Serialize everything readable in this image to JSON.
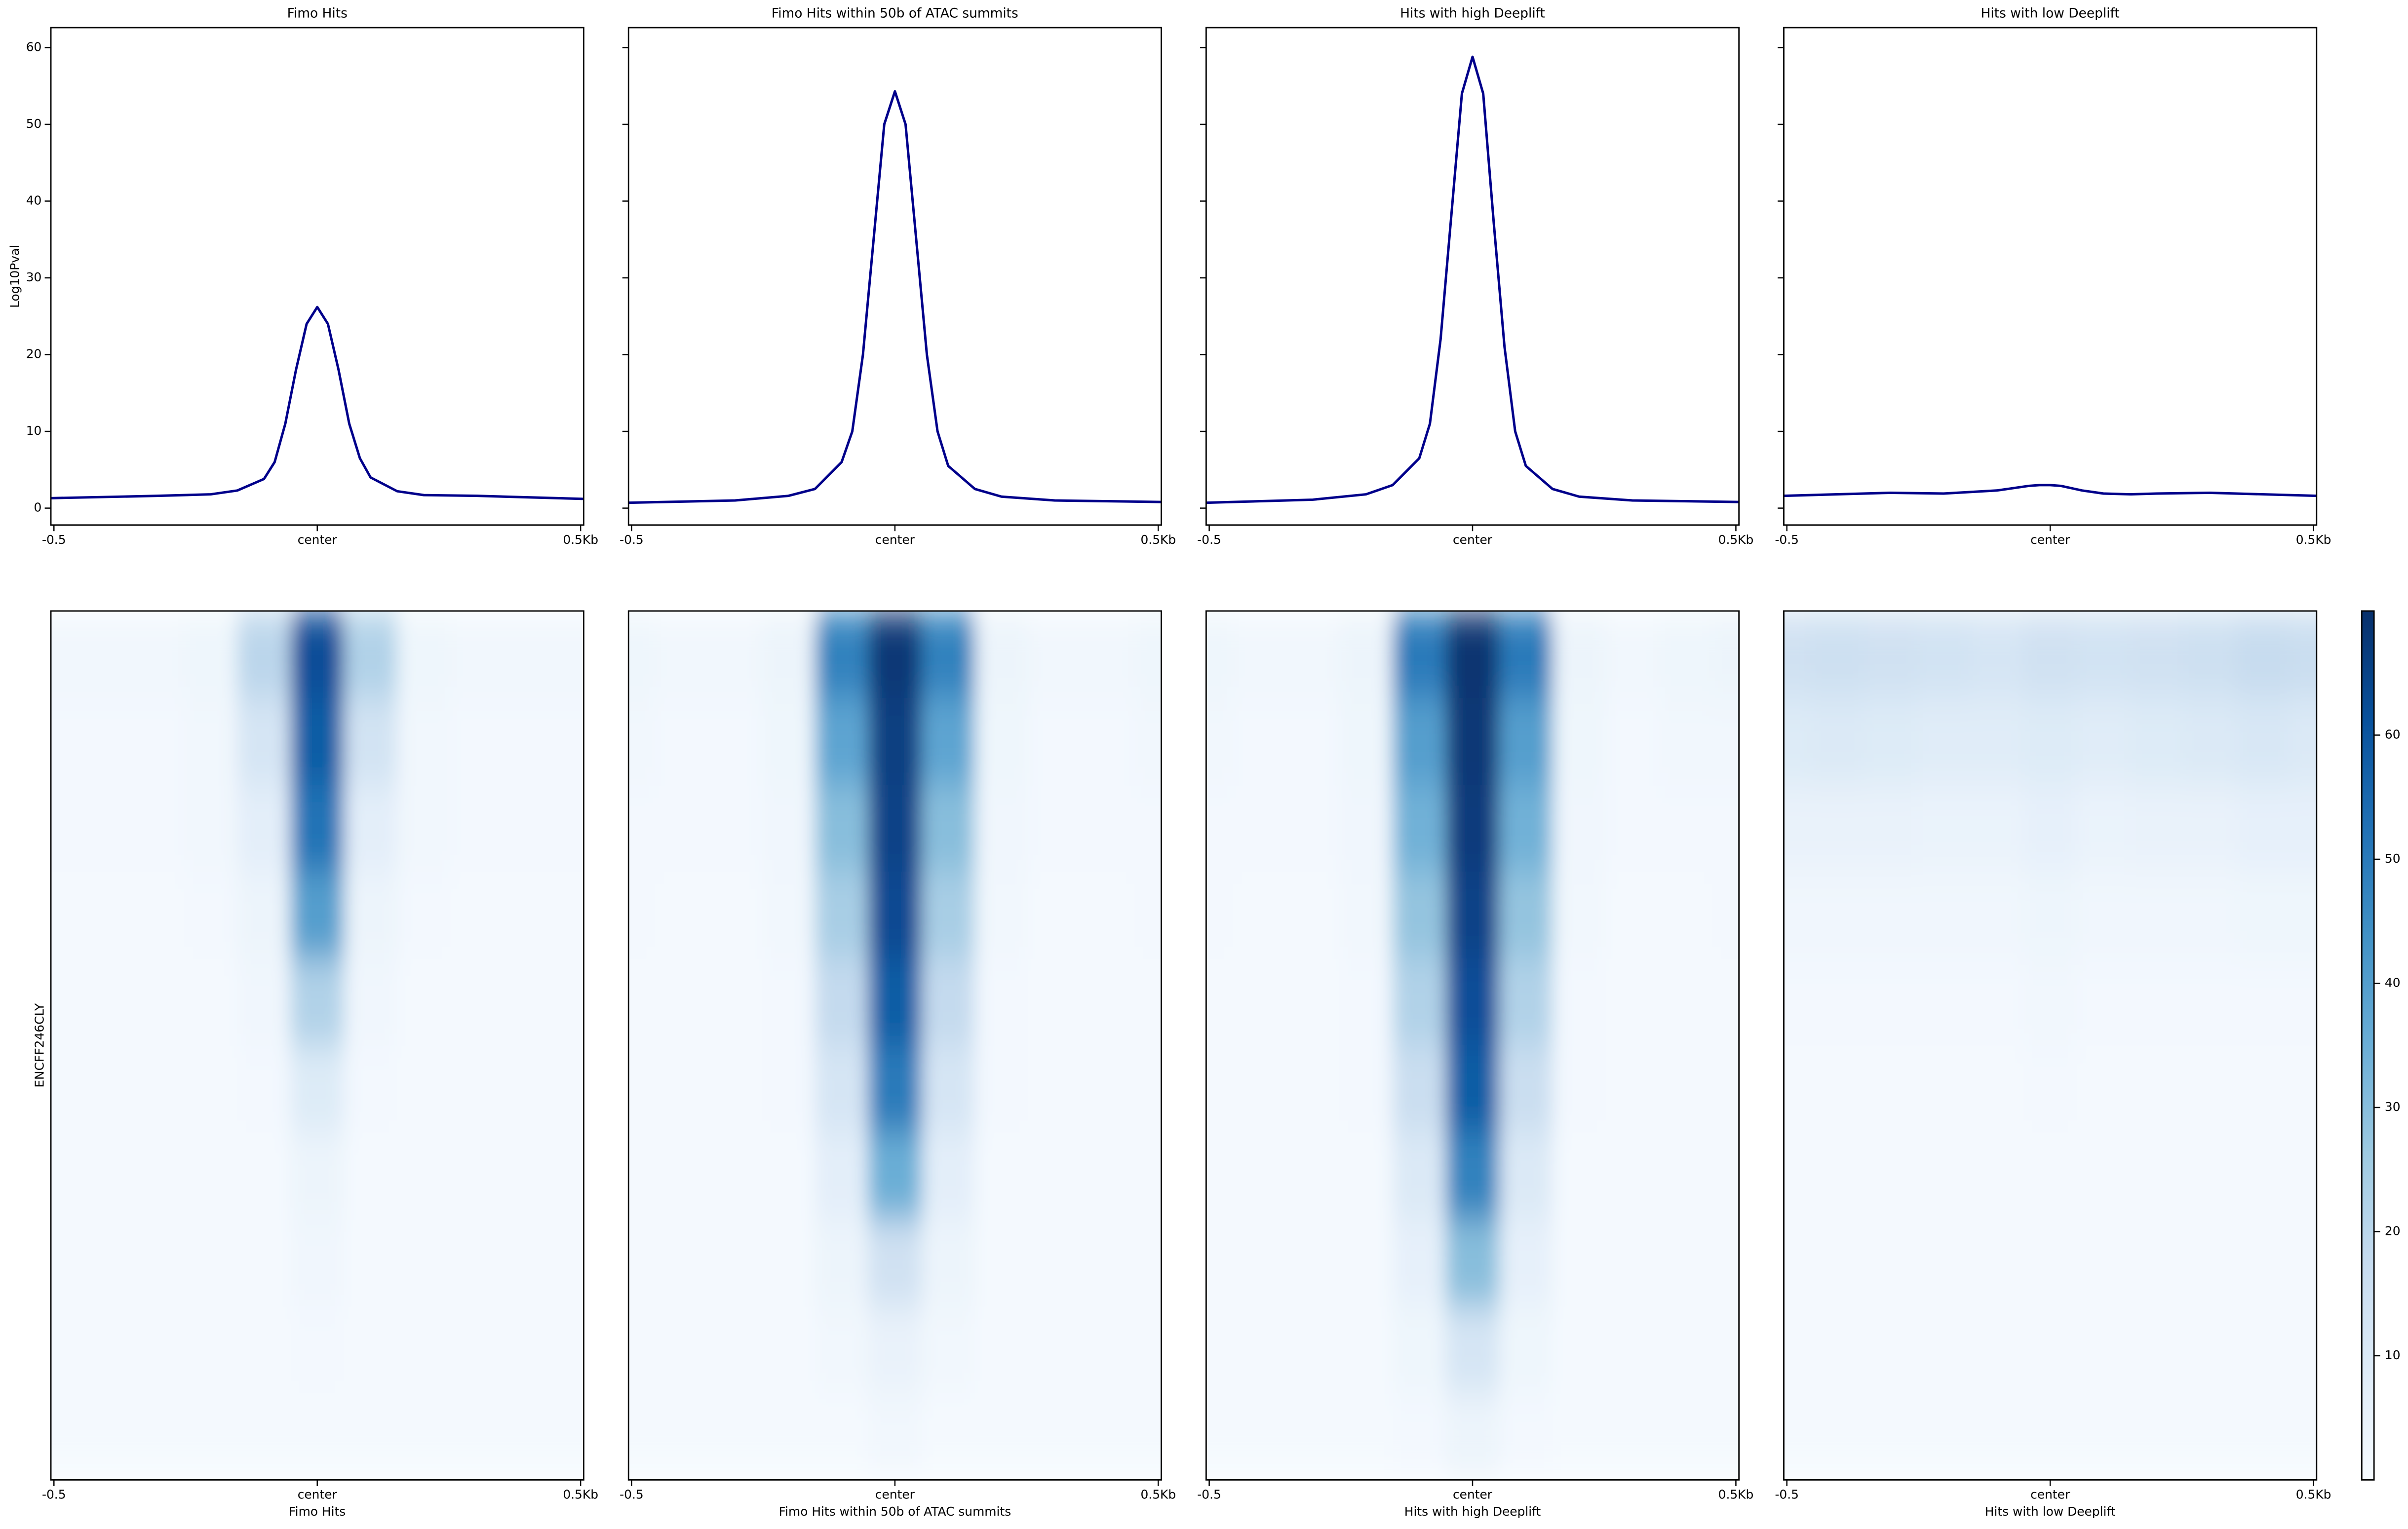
{
  "chart_data": [
    {
      "type": "line",
      "title": "Fimo Hits",
      "ylabel": "Log10Pval",
      "color": "#00008b",
      "x": [
        -0.5,
        -0.3,
        -0.2,
        -0.15,
        -0.1,
        -0.08,
        -0.06,
        -0.04,
        -0.02,
        0,
        0.02,
        0.04,
        0.06,
        0.08,
        0.1,
        0.15,
        0.2,
        0.3,
        0.5
      ],
      "values": [
        1.3,
        1.6,
        1.8,
        2.3,
        3.8,
        6,
        11,
        18,
        24,
        26.2,
        24,
        18,
        11,
        6.5,
        4,
        2.2,
        1.7,
        1.6,
        1.2
      ],
      "xlim": [
        -0.5,
        0.5
      ],
      "xticks": [
        -0.5,
        {
          "value": 0,
          "label": "center"
        },
        {
          "value": 0.5,
          "label": "0.5Kb"
        }
      ],
      "ylim": [
        -2.2,
        62.6
      ],
      "yticks": [
        0,
        10,
        20,
        30,
        40,
        50,
        60
      ]
    },
    {
      "type": "line",
      "title": "Fimo Hits within 50b of ATAC summits",
      "color": "#00008b",
      "x": [
        -0.5,
        -0.3,
        -0.2,
        -0.15,
        -0.1,
        -0.08,
        -0.06,
        -0.04,
        -0.02,
        0,
        0.02,
        0.04,
        0.06,
        0.08,
        0.1,
        0.15,
        0.2,
        0.3,
        0.5
      ],
      "values": [
        0.7,
        1,
        1.6,
        2.5,
        6,
        10,
        20,
        35,
        50,
        54.3,
        50,
        35,
        20,
        10,
        5.5,
        2.5,
        1.5,
        1,
        0.8
      ],
      "xlim": [
        -0.5,
        0.5
      ],
      "xticks": [
        -0.5,
        {
          "value": 0,
          "label": "center"
        },
        {
          "value": 0.5,
          "label": "0.5Kb"
        }
      ]
    },
    {
      "type": "line",
      "title": "Hits with high Deeplift",
      "color": "#00008b",
      "x": [
        -0.5,
        -0.3,
        -0.2,
        -0.15,
        -0.1,
        -0.08,
        -0.06,
        -0.04,
        -0.02,
        0,
        0.02,
        0.04,
        0.06,
        0.08,
        0.1,
        0.15,
        0.2,
        0.3,
        0.5
      ],
      "values": [
        0.7,
        1.1,
        1.8,
        3,
        6.5,
        11,
        22,
        38,
        54,
        58.8,
        54,
        37,
        21,
        10,
        5.5,
        2.5,
        1.5,
        1,
        0.8
      ],
      "xlim": [
        -0.5,
        0.5
      ],
      "xticks": [
        -0.5,
        {
          "value": 0,
          "label": "center"
        },
        {
          "value": 0.5,
          "label": "0.5Kb"
        }
      ]
    },
    {
      "type": "line",
      "title": "Hits with low Deeplift",
      "color": "#00008b",
      "x": [
        -0.5,
        -0.3,
        -0.2,
        -0.15,
        -0.1,
        -0.08,
        -0.06,
        -0.04,
        -0.02,
        0,
        0.02,
        0.04,
        0.06,
        0.08,
        0.1,
        0.15,
        0.2,
        0.3,
        0.5
      ],
      "values": [
        1.6,
        2,
        1.9,
        2.1,
        2.3,
        2.5,
        2.7,
        2.9,
        3,
        3,
        2.9,
        2.6,
        2.3,
        2.1,
        1.9,
        1.8,
        1.9,
        2,
        1.6
      ],
      "xlim": [
        -0.5,
        0.5
      ],
      "xticks": [
        -0.5,
        {
          "value": 0,
          "label": "center"
        },
        {
          "value": 0.5,
          "label": "0.5Kb"
        }
      ]
    },
    {
      "type": "heatmap",
      "xlabel": "Fimo Hits",
      "ylabel": "ENCFF246CLY",
      "x": [
        -0.5,
        -0.4,
        -0.3,
        -0.2,
        -0.1,
        0,
        0.1,
        0.2,
        0.3,
        0.4,
        0.5
      ],
      "z": [
        [
          2,
          2,
          2,
          3,
          20,
          62,
          22,
          3,
          2,
          2,
          2
        ],
        [
          1.5,
          1.5,
          1.5,
          2,
          12,
          58,
          13,
          2,
          1.5,
          1.5,
          1.5
        ],
        [
          1.5,
          1.5,
          1.5,
          2,
          7,
          52,
          7,
          2,
          1.5,
          1.5,
          1.5
        ],
        [
          1.2,
          1.2,
          1.2,
          1.5,
          4,
          40,
          4,
          1.5,
          1.2,
          1.2,
          1.2
        ],
        [
          1,
          1,
          1,
          1.2,
          2.5,
          22,
          2.5,
          1.2,
          1,
          1,
          1
        ],
        [
          1,
          1,
          1,
          1,
          1.5,
          9,
          1.5,
          1,
          1,
          1,
          1
        ],
        [
          1,
          1,
          1,
          1,
          1.2,
          4,
          1.2,
          1,
          1,
          1,
          1
        ],
        [
          1,
          1,
          1,
          1,
          1,
          2.5,
          1,
          1,
          1,
          1,
          1
        ],
        [
          1,
          1,
          1,
          1,
          1,
          1.5,
          1,
          1,
          1,
          1,
          1
        ],
        [
          1,
          1,
          1,
          1,
          1,
          1.2,
          1,
          1,
          1,
          1,
          1
        ]
      ],
      "xlim": [
        -0.5,
        0.5
      ],
      "xticks": [
        -0.5,
        {
          "value": 0,
          "label": "center"
        },
        {
          "value": 0.5,
          "label": "0.5Kb"
        }
      ]
    },
    {
      "type": "heatmap",
      "xlabel": "Fimo Hits within 50b of ATAC summits",
      "x": [
        -0.5,
        -0.4,
        -0.3,
        -0.2,
        -0.1,
        0,
        0.1,
        0.2,
        0.3,
        0.4,
        0.5
      ],
      "z": [
        [
          3,
          2,
          2,
          4,
          48,
          68,
          48,
          4,
          2,
          2,
          3
        ],
        [
          2,
          1.5,
          1.5,
          3,
          38,
          66,
          38,
          3,
          1.5,
          1.5,
          2
        ],
        [
          1.5,
          1.5,
          1.5,
          2.5,
          30,
          65,
          30,
          2.5,
          1.5,
          1.5,
          1.5
        ],
        [
          1.5,
          1.2,
          1.2,
          2,
          24,
          63,
          24,
          2,
          1.2,
          1.2,
          1.5
        ],
        [
          1.2,
          1.2,
          1.2,
          1.5,
          18,
          58,
          18,
          1.5,
          1.2,
          1.2,
          1.2
        ],
        [
          1.2,
          1,
          1,
          1.5,
          12,
          50,
          12,
          1.5,
          1,
          1,
          1.2
        ],
        [
          1,
          1,
          1,
          1.2,
          7,
          35,
          7,
          1.2,
          1,
          1,
          1
        ],
        [
          1,
          1,
          1,
          1,
          4,
          14,
          4,
          1,
          1,
          1,
          1
        ],
        [
          1,
          1,
          1,
          1,
          2,
          5,
          2,
          1,
          1,
          1,
          1
        ],
        [
          1,
          1,
          1,
          1,
          1.2,
          2,
          1.2,
          1,
          1,
          1,
          1
        ]
      ],
      "xlim": [
        -0.5,
        0.5
      ],
      "xticks": [
        -0.5,
        {
          "value": 0,
          "label": "center"
        },
        {
          "value": 0.5,
          "label": "0.5Kb"
        }
      ]
    },
    {
      "type": "heatmap",
      "xlabel": "Hits with high Deeplift",
      "x": [
        -0.5,
        -0.4,
        -0.3,
        -0.2,
        -0.1,
        0,
        0.1,
        0.2,
        0.3,
        0.4,
        0.5
      ],
      "z": [
        [
          3,
          2,
          2,
          4,
          50,
          69,
          50,
          4,
          2,
          3,
          4
        ],
        [
          2,
          1.5,
          1.5,
          3,
          40,
          68,
          40,
          3,
          1.5,
          2,
          2
        ],
        [
          1.5,
          1.5,
          1.5,
          2.5,
          34,
          67,
          34,
          2.5,
          1.5,
          1.5,
          1.5
        ],
        [
          1.5,
          1.2,
          1.2,
          2,
          28,
          65,
          28,
          2,
          1.2,
          1.2,
          1.5
        ],
        [
          1.2,
          1.2,
          1.2,
          1.5,
          22,
          62,
          22,
          1.5,
          1.2,
          1.2,
          1.2
        ],
        [
          1.2,
          1,
          1,
          1.5,
          16,
          58,
          16,
          1.5,
          1,
          1,
          1.2
        ],
        [
          1,
          1,
          1,
          1.2,
          10,
          48,
          10,
          1.2,
          1,
          1,
          1
        ],
        [
          1,
          1,
          1,
          1,
          6,
          30,
          6,
          1,
          1,
          1,
          1
        ],
        [
          1,
          1,
          1,
          1,
          3,
          12,
          3,
          1,
          1,
          1,
          1
        ],
        [
          1,
          1,
          1,
          1,
          1.5,
          4,
          1.5,
          1,
          1,
          1,
          1
        ]
      ],
      "xlim": [
        -0.5,
        0.5
      ],
      "xticks": [
        -0.5,
        {
          "value": 0,
          "label": "center"
        },
        {
          "value": 0.5,
          "label": "0.5Kb"
        }
      ]
    },
    {
      "type": "heatmap",
      "xlabel": "Hits with low Deeplift",
      "x": [
        -0.5,
        -0.4,
        -0.3,
        -0.2,
        -0.1,
        0,
        0.1,
        0.2,
        0.3,
        0.4,
        0.5
      ],
      "z": [
        [
          14,
          15,
          14,
          13,
          12,
          14,
          13,
          14,
          15,
          17,
          16
        ],
        [
          9,
          10,
          9,
          8,
          8,
          9,
          8,
          9,
          10,
          11,
          10
        ],
        [
          5,
          5,
          5,
          4.5,
          4.5,
          6,
          4.5,
          5,
          5,
          6,
          6
        ],
        [
          2.5,
          2.5,
          2.5,
          2.5,
          2.5,
          3.5,
          2.5,
          2.5,
          2.5,
          3,
          3
        ],
        [
          1.5,
          1.5,
          1.5,
          1.5,
          1.5,
          2,
          1.5,
          1.5,
          1.5,
          1.5,
          1.5
        ],
        [
          1.2,
          1.2,
          1.2,
          1.2,
          1.2,
          1.5,
          1.2,
          1.2,
          1.2,
          1.2,
          1.2
        ],
        [
          1.2,
          1.2,
          1.2,
          1.2,
          1.2,
          1.2,
          1.2,
          1.2,
          1.2,
          1.2,
          1.2
        ],
        [
          1.2,
          1.2,
          1.2,
          1.2,
          1.2,
          1.2,
          1.2,
          1.2,
          1.2,
          1.2,
          1.2
        ],
        [
          1.2,
          1.2,
          1.2,
          1.2,
          1.2,
          1.2,
          1.2,
          1.2,
          1.2,
          1.2,
          1.2
        ],
        [
          1.2,
          1.2,
          1.2,
          1.2,
          1.2,
          1.2,
          1.2,
          1.2,
          1.2,
          1.2,
          1.2
        ]
      ],
      "xlim": [
        -0.5,
        0.5
      ],
      "xticks": [
        -0.5,
        {
          "value": 0,
          "label": "center"
        },
        {
          "value": 0.5,
          "label": "0.5Kb"
        }
      ]
    }
  ],
  "colorbar": {
    "zlim": [
      0,
      70
    ],
    "ticks": [
      10,
      20,
      30,
      40,
      50,
      60
    ],
    "colors": [
      "#f7fbff",
      "#deebf7",
      "#c6dbef",
      "#9ecae1",
      "#6baed6",
      "#4292c6",
      "#2171b5",
      "#08519c",
      "#08306b"
    ]
  }
}
